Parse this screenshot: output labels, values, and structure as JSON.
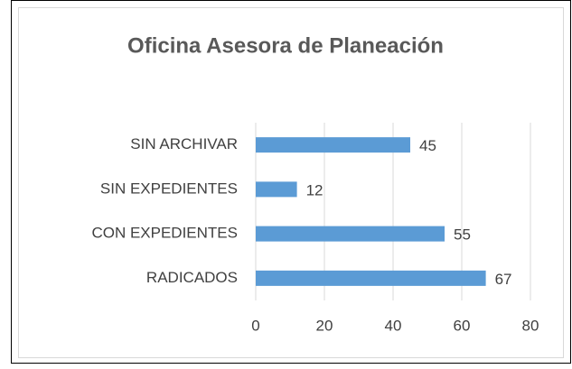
{
  "chart_data": {
    "type": "hbar",
    "title": "Oficina Asesora de Planeación",
    "categories": [
      "SIN ARCHIVAR",
      "SIN EXPEDIENTES",
      "CON EXPEDIENTES",
      "RADICADOS"
    ],
    "values": [
      45,
      12,
      55,
      67
    ],
    "color": "#5b9bd5",
    "xlim": [
      0,
      80
    ],
    "xticks": [
      0,
      20,
      40,
      60,
      80
    ],
    "grid": true
  }
}
